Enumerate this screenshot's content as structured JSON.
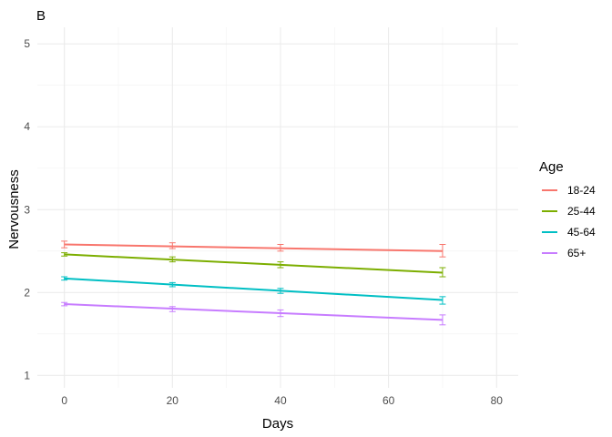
{
  "chart_data": {
    "type": "line",
    "tag": "B",
    "xlabel": "Days",
    "ylabel": "Nervousness",
    "xlim": [
      -5,
      84
    ],
    "ylim": [
      0.85,
      5.2
    ],
    "x_ticks": [
      0,
      20,
      40,
      60,
      80
    ],
    "x_minor_ticks": [
      10,
      30,
      50,
      70
    ],
    "y_ticks": [
      1,
      2,
      3,
      4,
      5
    ],
    "y_minor_ticks": [
      1.5,
      2.5,
      3.5,
      4.5
    ],
    "grid": true,
    "legend": {
      "title": "Age",
      "position": "right"
    },
    "series": [
      {
        "name": "18-24",
        "color": "#F8766D",
        "x": [
          0,
          70
        ],
        "y": [
          2.58,
          2.5
        ],
        "error_bars": [
          {
            "x": 0,
            "y": 2.58,
            "lo": 2.54,
            "hi": 2.62
          },
          {
            "x": 20,
            "y": 2.56,
            "lo": 2.53,
            "hi": 2.6
          },
          {
            "x": 40,
            "y": 2.54,
            "lo": 2.5,
            "hi": 2.58
          },
          {
            "x": 70,
            "y": 2.5,
            "lo": 2.43,
            "hi": 2.58
          }
        ]
      },
      {
        "name": "25-44",
        "color": "#7CAE00",
        "x": [
          0,
          70
        ],
        "y": [
          2.46,
          2.24
        ],
        "error_bars": [
          {
            "x": 0,
            "y": 2.46,
            "lo": 2.44,
            "hi": 2.48
          },
          {
            "x": 20,
            "y": 2.4,
            "lo": 2.37,
            "hi": 2.43
          },
          {
            "x": 40,
            "y": 2.33,
            "lo": 2.3,
            "hi": 2.37
          },
          {
            "x": 70,
            "y": 2.24,
            "lo": 2.19,
            "hi": 2.3
          }
        ]
      },
      {
        "name": "45-64",
        "color": "#00BFC4",
        "x": [
          0,
          70
        ],
        "y": [
          2.17,
          1.91
        ],
        "error_bars": [
          {
            "x": 0,
            "y": 2.17,
            "lo": 2.15,
            "hi": 2.19
          },
          {
            "x": 20,
            "y": 2.1,
            "lo": 2.07,
            "hi": 2.12
          },
          {
            "x": 40,
            "y": 2.02,
            "lo": 1.99,
            "hi": 2.05
          },
          {
            "x": 70,
            "y": 1.91,
            "lo": 1.86,
            "hi": 1.95
          }
        ]
      },
      {
        "name": "65+",
        "color": "#C77CFF",
        "x": [
          0,
          70
        ],
        "y": [
          1.86,
          1.67
        ],
        "error_bars": [
          {
            "x": 0,
            "y": 1.86,
            "lo": 1.84,
            "hi": 1.88
          },
          {
            "x": 20,
            "y": 1.8,
            "lo": 1.77,
            "hi": 1.83
          },
          {
            "x": 40,
            "y": 1.75,
            "lo": 1.71,
            "hi": 1.79
          },
          {
            "x": 70,
            "y": 1.67,
            "lo": 1.61,
            "hi": 1.73
          }
        ]
      }
    ]
  }
}
